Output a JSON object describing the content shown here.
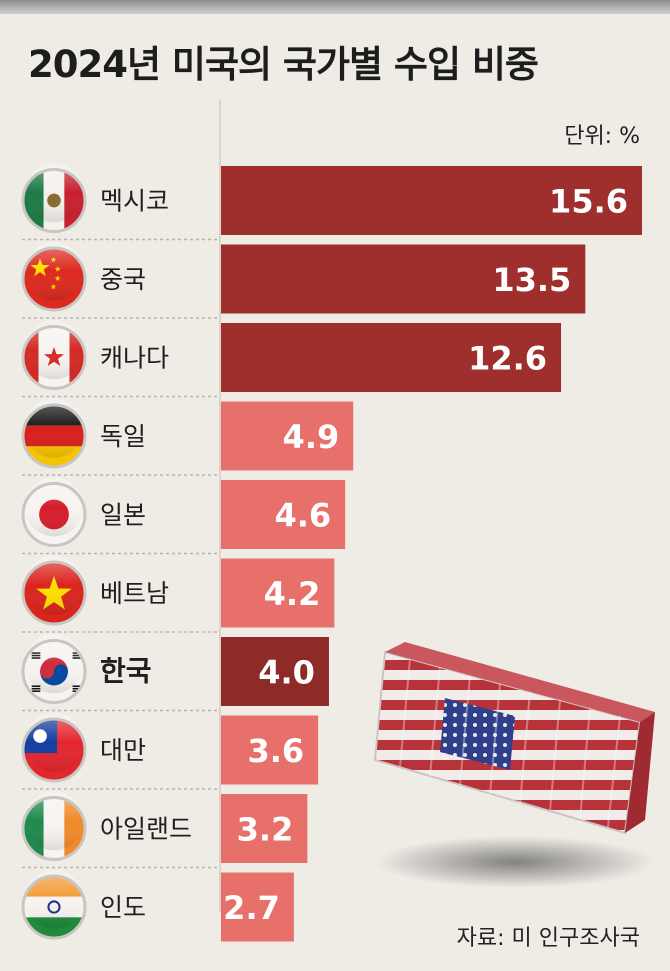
{
  "title": "2024년 미국의 국가별 수입 비중",
  "unit_label": "단위: %",
  "source": "자료: 미 인구조사국",
  "colors": {
    "bar_dark": "#9e2f2c",
    "bar_light": "#e8706a",
    "bar_highlight": "#8e2a27",
    "background": "#efece6"
  },
  "chart_data": {
    "type": "bar",
    "orientation": "horizontal",
    "unit": "%",
    "categories": [
      "멕시코",
      "중국",
      "캐나다",
      "독일",
      "일본",
      "베트남",
      "한국",
      "대만",
      "아일랜드",
      "인도"
    ],
    "values": [
      15.6,
      13.5,
      12.6,
      4.9,
      4.6,
      4.2,
      4.0,
      3.6,
      3.2,
      2.7
    ],
    "value_labels": [
      "15.6",
      "13.5",
      "12.6",
      "4.9",
      "4.6",
      "4.2",
      "4.0",
      "3.6",
      "3.2",
      "2.7"
    ],
    "highlight": "한국",
    "xlim": [
      0,
      15.6
    ],
    "flags": [
      "mexico-flag",
      "china-flag",
      "canada-flag",
      "germany-flag",
      "japan-flag",
      "vietnam-flag",
      "korea-flag",
      "taiwan-flag",
      "ireland-flag",
      "india-flag"
    ]
  }
}
